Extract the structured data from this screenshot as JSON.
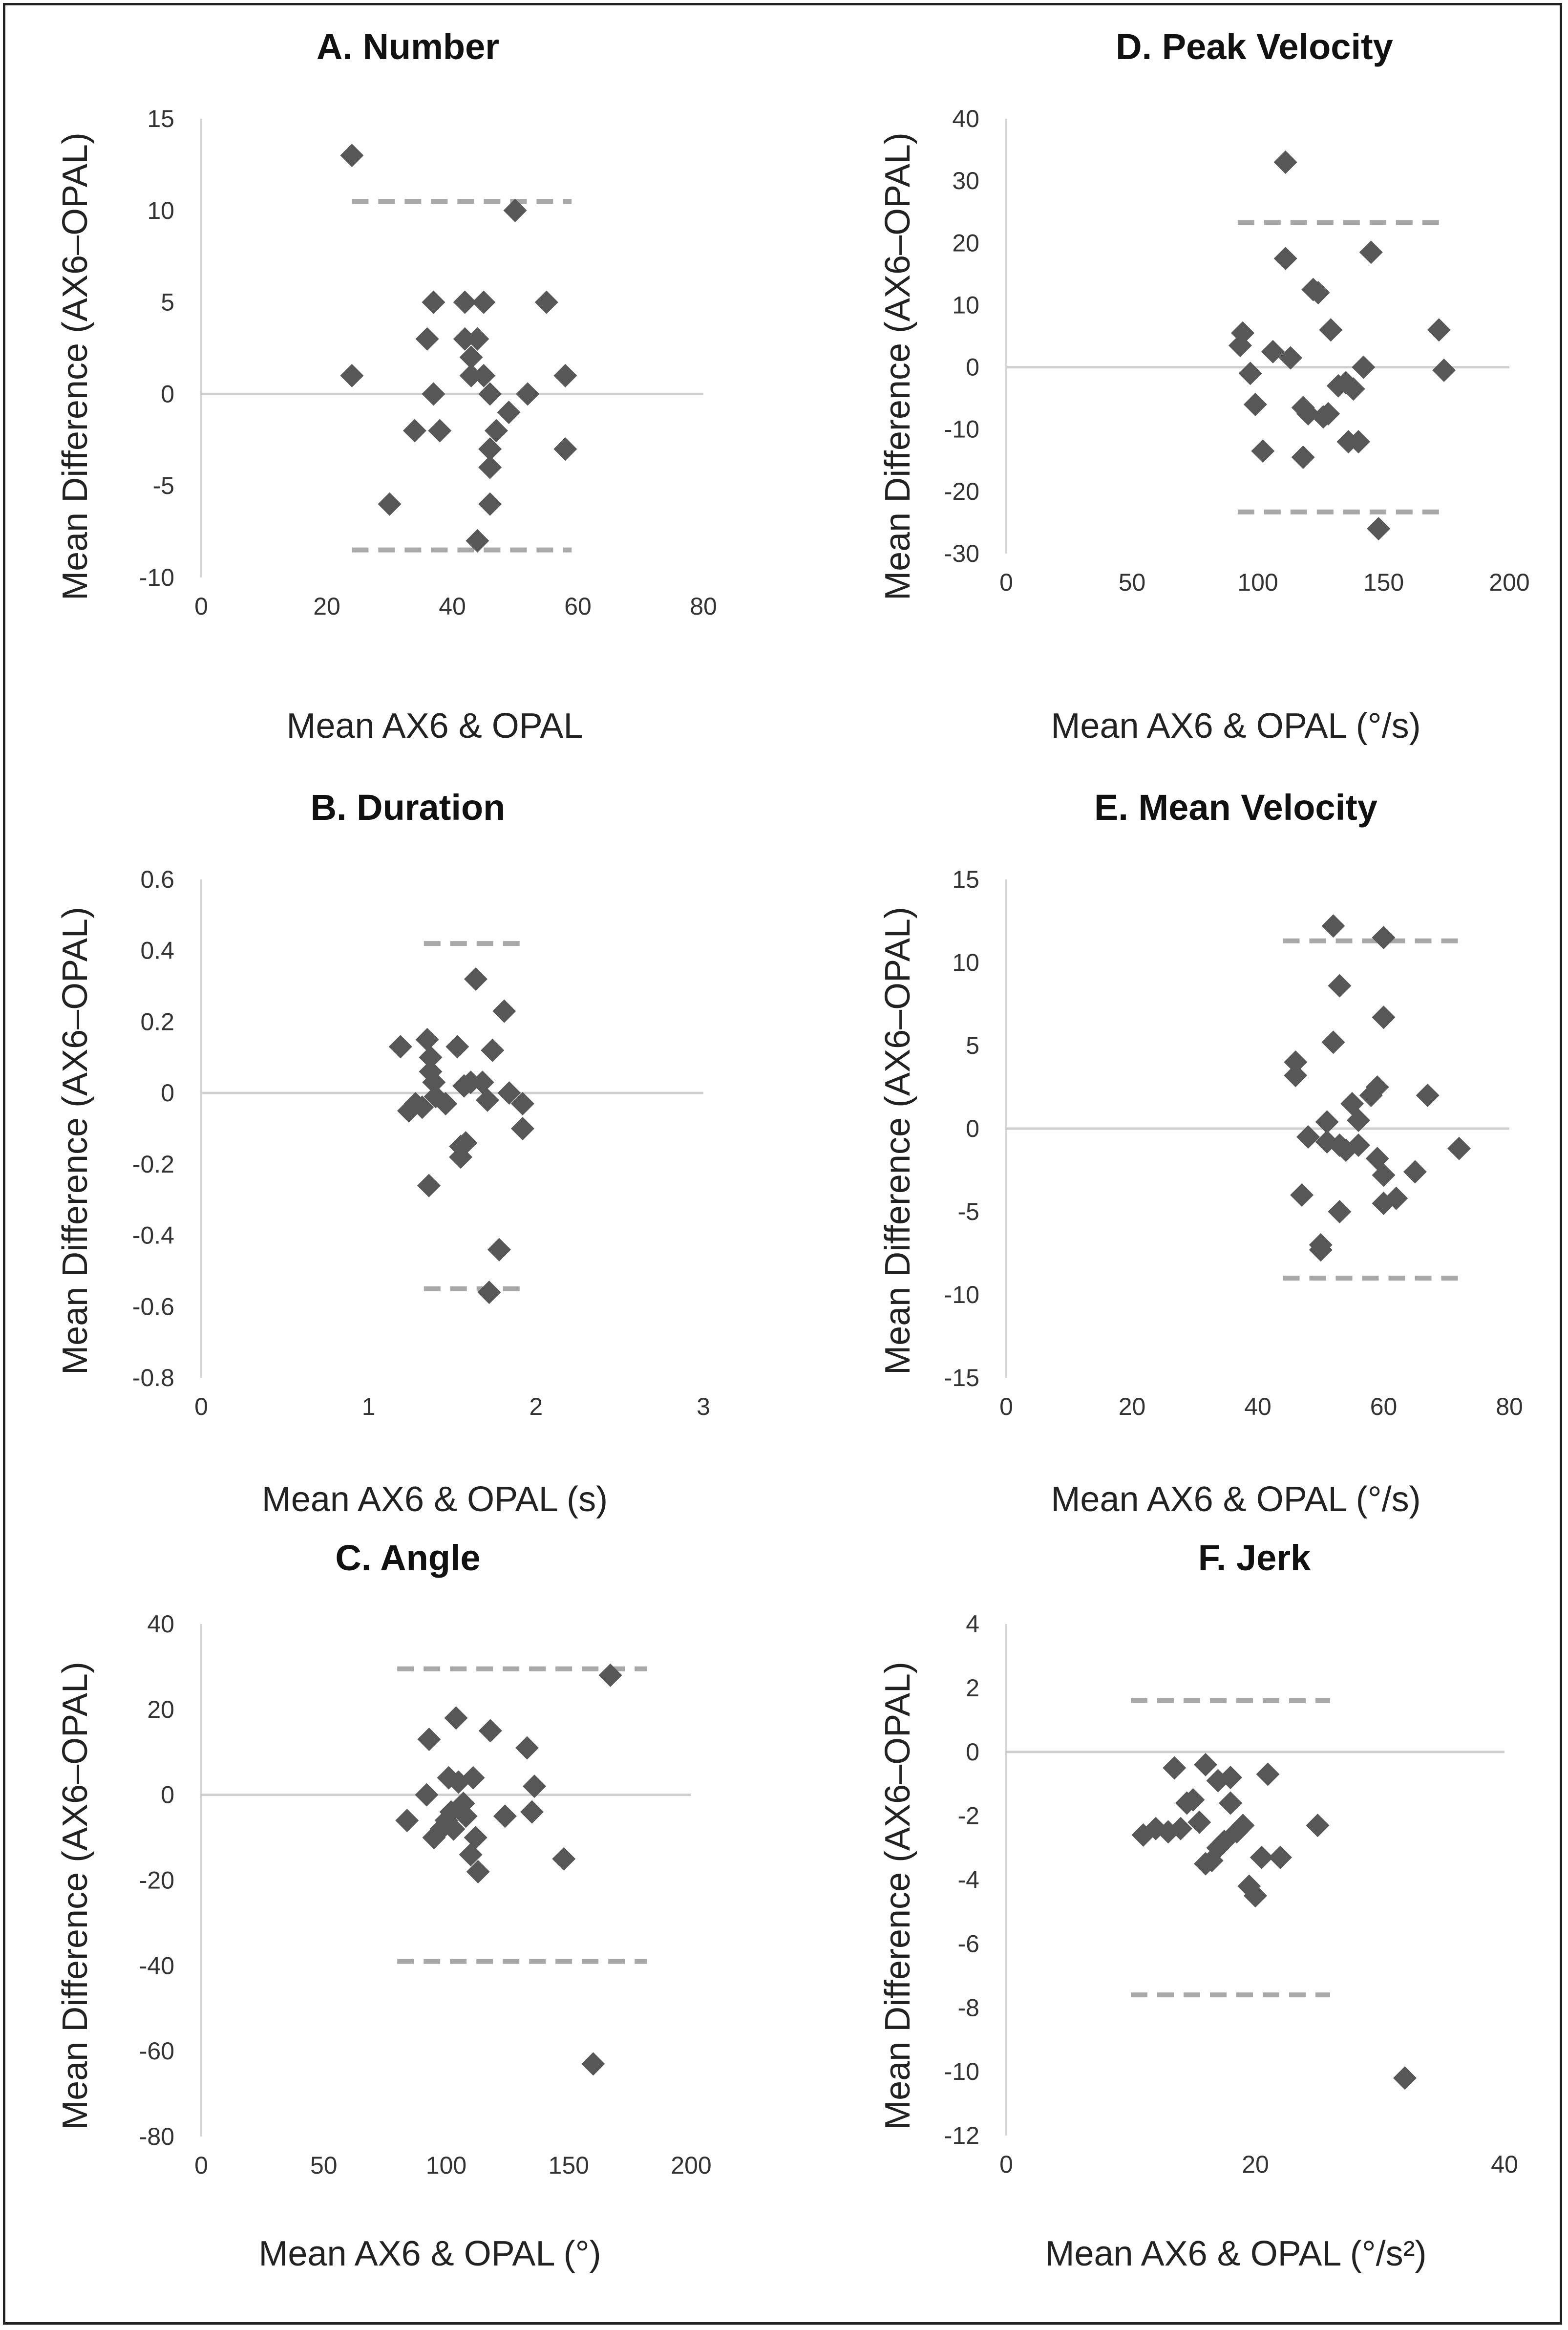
{
  "colors": {
    "point": "#575757",
    "limit_line": "#a8a8a8",
    "zero_line": "#d0d0d0",
    "frame": "#222222"
  },
  "chart_data": [
    {
      "id": "A",
      "type": "scatter",
      "title": "A.  Number",
      "xlabel": "Mean AX6 & OPAL",
      "ylabel": "Mean Difference (AX6–OPAL)",
      "xlim": [
        0,
        80
      ],
      "ylim": [
        -10,
        15
      ],
      "xticks": [
        "0",
        "20",
        "40",
        "60",
        "80"
      ],
      "yticks": [
        "15",
        "10",
        "5",
        "0",
        "-5",
        "-10"
      ],
      "upper_loa": 10.5,
      "lower_loa": -8.5,
      "loa_x_range": [
        24,
        59
      ],
      "points": [
        [
          24,
          13
        ],
        [
          24,
          1
        ],
        [
          30,
          -6
        ],
        [
          34,
          -2
        ],
        [
          36,
          3
        ],
        [
          37,
          5
        ],
        [
          37,
          0
        ],
        [
          38,
          -2
        ],
        [
          42,
          5
        ],
        [
          42,
          3
        ],
        [
          43,
          2
        ],
        [
          43,
          1
        ],
        [
          44,
          3
        ],
        [
          44,
          -8
        ],
        [
          45,
          1
        ],
        [
          45,
          5
        ],
        [
          46,
          -3
        ],
        [
          46,
          0
        ],
        [
          46,
          -4
        ],
        [
          46,
          -6
        ],
        [
          47,
          -2
        ],
        [
          49,
          -1
        ],
        [
          50,
          10
        ],
        [
          52,
          0
        ],
        [
          55,
          5
        ],
        [
          58,
          1
        ],
        [
          58,
          -3
        ]
      ]
    },
    {
      "id": "B",
      "type": "scatter",
      "title": "B.  Duration",
      "xlabel": "Mean AX6 & OPAL (s)",
      "ylabel": "Mean Difference (AX6–OPAL)",
      "xlim": [
        0,
        3
      ],
      "ylim": [
        -0.8,
        0.6
      ],
      "xticks": [
        "0",
        "1",
        "2",
        "3"
      ],
      "yticks": [
        "0.6",
        "0.4",
        "0.2",
        "0",
        "-0.2",
        "-0.4",
        "-0.6",
        "-0.8"
      ],
      "upper_loa": 0.42,
      "lower_loa": -0.55,
      "loa_x_range": [
        1.33,
        1.96
      ],
      "points": [
        [
          1.19,
          0.13
        ],
        [
          1.24,
          -0.05
        ],
        [
          1.28,
          -0.03
        ],
        [
          1.32,
          -0.04
        ],
        [
          1.35,
          0.15
        ],
        [
          1.36,
          -0.26
        ],
        [
          1.37,
          0.1
        ],
        [
          1.37,
          0.06
        ],
        [
          1.39,
          0.03
        ],
        [
          1.4,
          -0.01
        ],
        [
          1.46,
          -0.03
        ],
        [
          1.53,
          0.13
        ],
        [
          1.55,
          -0.15
        ],
        [
          1.55,
          -0.18
        ],
        [
          1.57,
          0.02
        ],
        [
          1.58,
          -0.14
        ],
        [
          1.61,
          0.03
        ],
        [
          1.64,
          0.32
        ],
        [
          1.68,
          0.03
        ],
        [
          1.71,
          -0.02
        ],
        [
          1.72,
          -0.56
        ],
        [
          1.74,
          0.12
        ],
        [
          1.78,
          -0.44
        ],
        [
          1.81,
          0.23
        ],
        [
          1.84,
          0
        ],
        [
          1.92,
          -0.03
        ],
        [
          1.92,
          -0.1
        ]
      ]
    },
    {
      "id": "C",
      "type": "scatter",
      "title": "C.  Angle",
      "xlabel": "Mean AX6 & OPAL (°)",
      "ylabel": "Mean Difference (AX6–OPAL)",
      "xlim": [
        0,
        200
      ],
      "ylim": [
        -80,
        40
      ],
      "xticks": [
        "0",
        "50",
        "100",
        "150",
        "200"
      ],
      "yticks": [
        "40",
        "20",
        "0",
        "-20",
        "-40",
        "-60",
        "-80"
      ],
      "upper_loa": 29.5,
      "lower_loa": -39,
      "loa_x_range": [
        80,
        182
      ],
      "points": [
        [
          84,
          -6
        ],
        [
          92,
          0
        ],
        [
          93,
          13
        ],
        [
          95,
          -10
        ],
        [
          98,
          -8
        ],
        [
          100,
          -6
        ],
        [
          101,
          4
        ],
        [
          102,
          -4
        ],
        [
          103,
          -8
        ],
        [
          104,
          18
        ],
        [
          105,
          3
        ],
        [
          107,
          -2
        ],
        [
          108,
          -5
        ],
        [
          110,
          -14
        ],
        [
          111,
          4
        ],
        [
          112,
          -10
        ],
        [
          113,
          -18
        ],
        [
          118,
          15
        ],
        [
          124,
          -5
        ],
        [
          133,
          11
        ],
        [
          135,
          -4
        ],
        [
          136,
          2
        ],
        [
          148,
          -15
        ],
        [
          160,
          -63
        ],
        [
          167,
          28
        ]
      ]
    },
    {
      "id": "D",
      "type": "scatter",
      "title": "D.  Peak Velocity",
      "xlabel": "Mean AX6 & OPAL (°/s)",
      "ylabel": "Mean Difference (AX6–OPAL)",
      "xlim": [
        0,
        200
      ],
      "ylim": [
        -30,
        40
      ],
      "xticks": [
        "0",
        "50",
        "100",
        "150",
        "200"
      ],
      "yticks": [
        "40",
        "30",
        "20",
        "10",
        "0",
        "-10",
        "-20",
        "-30"
      ],
      "upper_loa": 23.3,
      "lower_loa": -23.3,
      "loa_x_range": [
        92,
        174
      ],
      "points": [
        [
          93,
          3.5
        ],
        [
          94,
          5.5
        ],
        [
          97,
          -1
        ],
        [
          99,
          -6
        ],
        [
          102,
          -13.5
        ],
        [
          106,
          2.5
        ],
        [
          111,
          33
        ],
        [
          111,
          17.5
        ],
        [
          113,
          1.5
        ],
        [
          118,
          -6.5
        ],
        [
          118,
          -14.5
        ],
        [
          120,
          -7.5
        ],
        [
          122,
          12.5
        ],
        [
          124,
          12
        ],
        [
          126,
          -8
        ],
        [
          128,
          -7.5
        ],
        [
          129,
          6
        ],
        [
          132,
          -3
        ],
        [
          135,
          -2.5
        ],
        [
          136,
          -12
        ],
        [
          138,
          -3.5
        ],
        [
          140,
          -12
        ],
        [
          142,
          0
        ],
        [
          145,
          18.5
        ],
        [
          148,
          -26
        ],
        [
          172,
          6
        ],
        [
          174,
          -0.5
        ]
      ]
    },
    {
      "id": "E",
      "type": "scatter",
      "title": "E.  Mean Velocity",
      "xlabel": "Mean AX6 & OPAL (°/s)",
      "ylabel": "Mean Difference (AX6–OPAL)",
      "xlim": [
        0,
        80
      ],
      "ylim": [
        -15,
        15
      ],
      "xticks": [
        "0",
        "20",
        "40",
        "60",
        "80"
      ],
      "yticks": [
        "15",
        "10",
        "5",
        "0",
        "-5",
        "-10",
        "-15"
      ],
      "upper_loa": 11.3,
      "lower_loa": -9.0,
      "loa_x_range": [
        44,
        72
      ],
      "points": [
        [
          46,
          3.2
        ],
        [
          46,
          4
        ],
        [
          47,
          -4
        ],
        [
          48,
          -0.5
        ],
        [
          50,
          -7.3
        ],
        [
          50,
          -7
        ],
        [
          51,
          -0.8
        ],
        [
          51,
          0.4
        ],
        [
          52,
          12.2
        ],
        [
          52,
          5.2
        ],
        [
          53,
          8.6
        ],
        [
          53,
          -1
        ],
        [
          53,
          -5
        ],
        [
          54,
          -1.3
        ],
        [
          55,
          1.5
        ],
        [
          56,
          -1
        ],
        [
          56,
          0.5
        ],
        [
          58,
          2
        ],
        [
          59,
          2.5
        ],
        [
          59,
          -1.8
        ],
        [
          60,
          11.5
        ],
        [
          60,
          6.7
        ],
        [
          60,
          -4.5
        ],
        [
          60,
          -2.8
        ],
        [
          62,
          -4.2
        ],
        [
          65,
          -2.6
        ],
        [
          67,
          2
        ],
        [
          72,
          -1.2
        ]
      ]
    },
    {
      "id": "F",
      "type": "scatter",
      "title": "F.  Jerk",
      "xlabel": "Mean AX6 & OPAL (°/s²)",
      "ylabel": "Mean Difference (AX6–OPAL)",
      "xlim": [
        0,
        40
      ],
      "ylim": [
        -12,
        4
      ],
      "xticks": [
        "0",
        "20",
        "40"
      ],
      "yticks": [
        "4",
        "2",
        "0",
        "-2",
        "-4",
        "-6",
        "-8",
        "-10",
        "-12"
      ],
      "upper_loa": 1.6,
      "lower_loa": -7.6,
      "loa_x_range": [
        10,
        26
      ],
      "points": [
        [
          11,
          -2.6
        ],
        [
          12,
          -2.4
        ],
        [
          13,
          -2.5
        ],
        [
          13.5,
          -0.5
        ],
        [
          14,
          -2.4
        ],
        [
          14.5,
          -1.6
        ],
        [
          15,
          -1.5
        ],
        [
          15.5,
          -2.2
        ],
        [
          16,
          -3.5
        ],
        [
          16,
          -0.4
        ],
        [
          16.5,
          -3.4
        ],
        [
          17,
          -3.0
        ],
        [
          17,
          -0.9
        ],
        [
          17.5,
          -2.8
        ],
        [
          18,
          -1.6
        ],
        [
          18,
          -0.8
        ],
        [
          18.5,
          -2.5
        ],
        [
          19,
          -2.3
        ],
        [
          19.5,
          -4.2
        ],
        [
          20,
          -4.5
        ],
        [
          20.5,
          -3.3
        ],
        [
          21,
          -0.7
        ],
        [
          22,
          -3.3
        ],
        [
          25,
          -2.3
        ],
        [
          32,
          -10.2
        ]
      ]
    }
  ]
}
